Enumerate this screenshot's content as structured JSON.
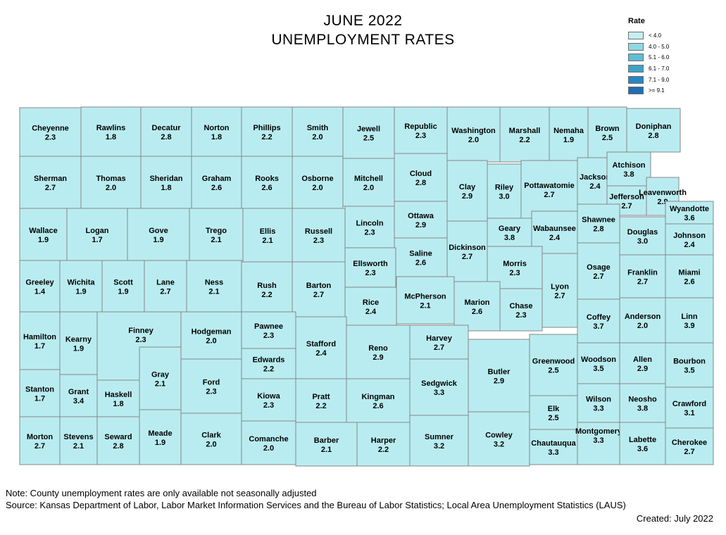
{
  "title": {
    "line1": "JUNE 2022",
    "line2": "UNEMPLOYMENT RATES"
  },
  "legend": {
    "title": "Rate",
    "classes": [
      {
        "label": "< 4.0",
        "color": "#c6eef2"
      },
      {
        "label": "4.0 - 5.0",
        "color": "#8fd8e2"
      },
      {
        "label": "5.1 - 6.0",
        "color": "#5fbdd4"
      },
      {
        "label": "6.1 - 7.0",
        "color": "#3fa2c9"
      },
      {
        "label": "7.1 - 9.0",
        "color": "#2a86c3"
      },
      {
        "label": ">= 9.1",
        "color": "#1f6db4"
      }
    ]
  },
  "map": {
    "fill_color": "#b9ecf0",
    "border_color": "#878787",
    "counties": [
      {
        "name": "Cheyenne",
        "rate": "2.3"
      },
      {
        "name": "Rawlins",
        "rate": "1.8"
      },
      {
        "name": "Decatur",
        "rate": "2.8"
      },
      {
        "name": "Norton",
        "rate": "1.8"
      },
      {
        "name": "Phillips",
        "rate": "2.2"
      },
      {
        "name": "Smith",
        "rate": "2.0"
      },
      {
        "name": "Jewell",
        "rate": "2.5"
      },
      {
        "name": "Republic",
        "rate": "2.3"
      },
      {
        "name": "Washington",
        "rate": "2.0"
      },
      {
        "name": "Marshall",
        "rate": "2.2"
      },
      {
        "name": "Nemaha",
        "rate": "1.9"
      },
      {
        "name": "Brown",
        "rate": "2.5"
      },
      {
        "name": "Doniphan",
        "rate": "2.8"
      },
      {
        "name": "Sherman",
        "rate": "2.7"
      },
      {
        "name": "Thomas",
        "rate": "2.0"
      },
      {
        "name": "Sheridan",
        "rate": "1.8"
      },
      {
        "name": "Graham",
        "rate": "2.6"
      },
      {
        "name": "Rooks",
        "rate": "2.6"
      },
      {
        "name": "Osborne",
        "rate": "2.0"
      },
      {
        "name": "Mitchell",
        "rate": "2.0"
      },
      {
        "name": "Cloud",
        "rate": "2.8"
      },
      {
        "name": "Clay",
        "rate": "2.9"
      },
      {
        "name": "Riley",
        "rate": "3.0"
      },
      {
        "name": "Pottawatomie",
        "rate": "2.7"
      },
      {
        "name": "Jackson",
        "rate": "2.4"
      },
      {
        "name": "Atchison",
        "rate": "3.8"
      },
      {
        "name": "Jefferson",
        "rate": "2.7"
      },
      {
        "name": "Leavenworth",
        "rate": "2.9"
      },
      {
        "name": "Wyandotte",
        "rate": "3.6"
      },
      {
        "name": "Wallace",
        "rate": "1.9"
      },
      {
        "name": "Logan",
        "rate": "1.7"
      },
      {
        "name": "Gove",
        "rate": "1.9"
      },
      {
        "name": "Trego",
        "rate": "2.1"
      },
      {
        "name": "Ellis",
        "rate": "2.1"
      },
      {
        "name": "Russell",
        "rate": "2.3"
      },
      {
        "name": "Lincoln",
        "rate": "2.3"
      },
      {
        "name": "Ottawa",
        "rate": "2.9"
      },
      {
        "name": "Saline",
        "rate": "2.6"
      },
      {
        "name": "Dickinson",
        "rate": "2.7"
      },
      {
        "name": "Geary",
        "rate": "3.8"
      },
      {
        "name": "Wabaunsee",
        "rate": "2.4"
      },
      {
        "name": "Morris",
        "rate": "2.3"
      },
      {
        "name": "Shawnee",
        "rate": "2.8"
      },
      {
        "name": "Douglas",
        "rate": "3.0"
      },
      {
        "name": "Johnson",
        "rate": "2.4"
      },
      {
        "name": "Greeley",
        "rate": "1.4"
      },
      {
        "name": "Wichita",
        "rate": "1.9"
      },
      {
        "name": "Scott",
        "rate": "1.9"
      },
      {
        "name": "Lane",
        "rate": "2.7"
      },
      {
        "name": "Ness",
        "rate": "2.1"
      },
      {
        "name": "Rush",
        "rate": "2.2"
      },
      {
        "name": "Barton",
        "rate": "2.7"
      },
      {
        "name": "Ellsworth",
        "rate": "2.3"
      },
      {
        "name": "Rice",
        "rate": "2.4"
      },
      {
        "name": "McPherson",
        "rate": "2.1"
      },
      {
        "name": "Marion",
        "rate": "2.6"
      },
      {
        "name": "Chase",
        "rate": "2.3"
      },
      {
        "name": "Lyon",
        "rate": "2.7"
      },
      {
        "name": "Osage",
        "rate": "2.7"
      },
      {
        "name": "Franklin",
        "rate": "2.7"
      },
      {
        "name": "Miami",
        "rate": "2.6"
      },
      {
        "name": "Coffey",
        "rate": "3.7"
      },
      {
        "name": "Anderson",
        "rate": "2.0"
      },
      {
        "name": "Linn",
        "rate": "3.9"
      },
      {
        "name": "Hamilton",
        "rate": "1.7"
      },
      {
        "name": "Kearny",
        "rate": "1.9"
      },
      {
        "name": "Finney",
        "rate": "2.3"
      },
      {
        "name": "Hodgeman",
        "rate": "2.0"
      },
      {
        "name": "Pawnee",
        "rate": "2.3"
      },
      {
        "name": "Edwards",
        "rate": "2.2"
      },
      {
        "name": "Stafford",
        "rate": "2.4"
      },
      {
        "name": "Reno",
        "rate": "2.9"
      },
      {
        "name": "Harvey",
        "rate": "2.7"
      },
      {
        "name": "Butler",
        "rate": "2.9"
      },
      {
        "name": "Greenwood",
        "rate": "2.5"
      },
      {
        "name": "Woodson",
        "rate": "3.5"
      },
      {
        "name": "Allen",
        "rate": "2.9"
      },
      {
        "name": "Bourbon",
        "rate": "3.5"
      },
      {
        "name": "Stanton",
        "rate": "1.7"
      },
      {
        "name": "Grant",
        "rate": "3.4"
      },
      {
        "name": "Haskell",
        "rate": "1.8"
      },
      {
        "name": "Gray",
        "rate": "2.1"
      },
      {
        "name": "Ford",
        "rate": "2.3"
      },
      {
        "name": "Kiowa",
        "rate": "2.3"
      },
      {
        "name": "Pratt",
        "rate": "2.2"
      },
      {
        "name": "Kingman",
        "rate": "2.6"
      },
      {
        "name": "Sedgwick",
        "rate": "3.3"
      },
      {
        "name": "Wilson",
        "rate": "3.3"
      },
      {
        "name": "Neosho",
        "rate": "3.8"
      },
      {
        "name": "Crawford",
        "rate": "3.1"
      },
      {
        "name": "Elk",
        "rate": "2.5"
      },
      {
        "name": "Morton",
        "rate": "2.7"
      },
      {
        "name": "Stevens",
        "rate": "2.1"
      },
      {
        "name": "Seward",
        "rate": "2.8"
      },
      {
        "name": "Meade",
        "rate": "1.9"
      },
      {
        "name": "Clark",
        "rate": "2.0"
      },
      {
        "name": "Comanche",
        "rate": "2.0"
      },
      {
        "name": "Barber",
        "rate": "2.1"
      },
      {
        "name": "Harper",
        "rate": "2.2"
      },
      {
        "name": "Sumner",
        "rate": "3.2"
      },
      {
        "name": "Cowley",
        "rate": "3.2"
      },
      {
        "name": "Chautauqua",
        "rate": "3.3"
      },
      {
        "name": "Montgomery",
        "rate": "3.3"
      },
      {
        "name": "Labette",
        "rate": "3.6"
      },
      {
        "name": "Cherokee",
        "rate": "2.7"
      }
    ]
  },
  "footer": {
    "note": "Note: County unemployment rates are only available not seasonally adjusted",
    "source": "Source: Kansas Department of Labor, Labor Market Information Services and the Bureau of Labor Statistics; Local Area Unemployment Statistics (LAUS)",
    "created": "Created: July 2022"
  }
}
